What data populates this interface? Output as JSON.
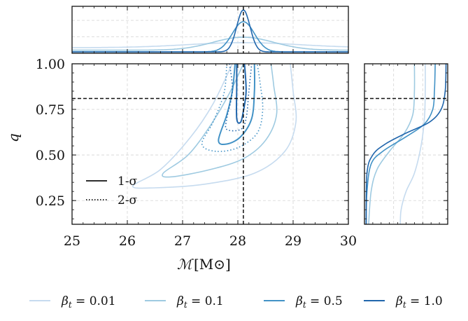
{
  "chart_data": {
    "type": "line",
    "x_axis": {
      "label_main": "ℳ",
      "label_unit": "[M⊙]",
      "ticks": [
        25,
        26,
        27,
        28,
        29,
        30
      ],
      "tick_labels": [
        "25",
        "26",
        "27",
        "28",
        "29",
        "30"
      ],
      "range": [
        25,
        30
      ]
    },
    "y_axis": {
      "label": "q",
      "ticks": [
        0.25,
        0.5,
        0.75,
        1.0
      ],
      "tick_labels": [
        "0.25",
        "0.50",
        "0.75",
        "1.00"
      ],
      "range": [
        0.12,
        1.0
      ]
    },
    "grid": true,
    "truth": {
      "chirp_mass": 28.1,
      "q": 0.81
    },
    "styles_legend": {
      "position": "lower-left",
      "entries": [
        {
          "label": "1-σ",
          "dash": "solid"
        },
        {
          "label": "2-σ",
          "dash": "dotted"
        }
      ]
    },
    "series_legend": {
      "position": "bottom",
      "entries": [
        {
          "label": "β_t = 0.01",
          "prefix": "β",
          "sub": "t",
          "suffix": " = 0.01",
          "color": "#c6dbef"
        },
        {
          "label": "β_t = 0.1",
          "prefix": "β",
          "sub": "t",
          "suffix": " = 0.1",
          "color": "#9ecae1"
        },
        {
          "label": "β_t = 0.5",
          "prefix": "β",
          "sub": "t",
          "suffix": " = 0.5",
          "color": "#4292c6"
        },
        {
          "label": "β_t = 1.0",
          "prefix": "β",
          "sub": "t",
          "suffix": " = 1.0",
          "color": "#2166ac"
        }
      ]
    },
    "series": [
      {
        "beta_t": 0.01,
        "color": "#c6dbef",
        "contour_1sigma": [],
        "contour_2sigma": [
          [
            27.9,
            1.0
          ],
          [
            27.55,
            0.78
          ],
          [
            27.15,
            0.6
          ],
          [
            26.6,
            0.42
          ],
          [
            26.1,
            0.33
          ],
          [
            26.5,
            0.32
          ],
          [
            27.4,
            0.34
          ],
          [
            28.3,
            0.4
          ],
          [
            28.85,
            0.52
          ],
          [
            29.05,
            0.68
          ],
          [
            29.0,
            0.85
          ],
          [
            28.95,
            1.0
          ]
        ],
        "chirp_mass_marginal": {
          "center": 28.1,
          "width": 1.0,
          "peak": 0.22,
          "baseline": 0.1
        },
        "q_marginal": [
          [
            1.0,
            0.73
          ],
          [
            0.85,
            0.73
          ],
          [
            0.7,
            0.72
          ],
          [
            0.55,
            0.68
          ],
          [
            0.4,
            0.6
          ],
          [
            0.3,
            0.5
          ],
          [
            0.2,
            0.44
          ],
          [
            0.12,
            0.43
          ]
        ]
      },
      {
        "beta_t": 0.1,
        "color": "#9ecae1",
        "contour_1sigma": [],
        "contour_2sigma": [
          [
            28.1,
            1.0
          ],
          [
            27.85,
            0.84
          ],
          [
            27.5,
            0.66
          ],
          [
            27.1,
            0.5
          ],
          [
            26.65,
            0.4
          ],
          [
            26.8,
            0.38
          ],
          [
            27.5,
            0.42
          ],
          [
            28.1,
            0.48
          ],
          [
            28.5,
            0.58
          ],
          [
            28.7,
            0.72
          ],
          [
            28.65,
            0.88
          ],
          [
            28.6,
            1.0
          ]
        ],
        "chirp_mass_marginal": {
          "center": 28.1,
          "width": 0.55,
          "peak": 0.35,
          "baseline": 0.04
        },
        "q_marginal": [
          [
            1.0,
            0.6
          ],
          [
            0.85,
            0.6
          ],
          [
            0.72,
            0.58
          ],
          [
            0.62,
            0.48
          ],
          [
            0.52,
            0.3
          ],
          [
            0.42,
            0.15
          ],
          [
            0.3,
            0.08
          ],
          [
            0.12,
            0.05
          ]
        ]
      },
      {
        "beta_t": 0.5,
        "color": "#4292c6",
        "contour_1sigma": [
          [
            27.95,
            1.0
          ],
          [
            27.9,
            0.85
          ],
          [
            27.8,
            0.72
          ],
          [
            27.65,
            0.58
          ],
          [
            27.8,
            0.56
          ],
          [
            28.05,
            0.6
          ],
          [
            28.25,
            0.7
          ],
          [
            28.3,
            0.85
          ],
          [
            28.3,
            1.0
          ]
        ],
        "contour_2sigma": [
          [
            27.8,
            1.0
          ],
          [
            27.75,
            0.84
          ],
          [
            27.55,
            0.68
          ],
          [
            27.35,
            0.56
          ],
          [
            27.6,
            0.52
          ],
          [
            28.0,
            0.54
          ],
          [
            28.35,
            0.62
          ],
          [
            28.45,
            0.75
          ],
          [
            28.4,
            0.9
          ],
          [
            28.35,
            1.0
          ]
        ],
        "chirp_mass_marginal": {
          "center": 28.1,
          "width": 0.2,
          "peak": 0.72,
          "baseline": 0.0
        },
        "q_marginal": [
          [
            1.0,
            0.85
          ],
          [
            0.85,
            0.84
          ],
          [
            0.75,
            0.82
          ],
          [
            0.67,
            0.72
          ],
          [
            0.6,
            0.5
          ],
          [
            0.52,
            0.22
          ],
          [
            0.45,
            0.08
          ],
          [
            0.3,
            0.03
          ],
          [
            0.12,
            0.02
          ]
        ]
      },
      {
        "beta_t": 1.0,
        "color": "#2166ac",
        "contour_1sigma": [
          [
            27.98,
            1.0
          ],
          [
            27.98,
            0.88
          ],
          [
            27.98,
            0.7
          ],
          [
            28.05,
            0.68
          ],
          [
            28.1,
            0.74
          ],
          [
            28.15,
            0.85
          ],
          [
            28.12,
            1.0
          ]
        ],
        "contour_2sigma": [
          [
            27.85,
            1.0
          ],
          [
            27.9,
            0.85
          ],
          [
            27.8,
            0.7
          ],
          [
            27.8,
            0.64
          ],
          [
            28.05,
            0.64
          ],
          [
            28.15,
            0.7
          ],
          [
            28.2,
            0.85
          ],
          [
            28.25,
            1.0
          ]
        ],
        "chirp_mass_marginal": {
          "center": 28.1,
          "width": 0.12,
          "peak": 1.0,
          "baseline": 0.0
        },
        "q_marginal": [
          [
            1.0,
            0.98
          ],
          [
            0.85,
            0.97
          ],
          [
            0.75,
            0.92
          ],
          [
            0.68,
            0.78
          ],
          [
            0.62,
            0.5
          ],
          [
            0.56,
            0.25
          ],
          [
            0.5,
            0.1
          ],
          [
            0.4,
            0.03
          ],
          [
            0.12,
            0.02
          ]
        ]
      }
    ]
  }
}
